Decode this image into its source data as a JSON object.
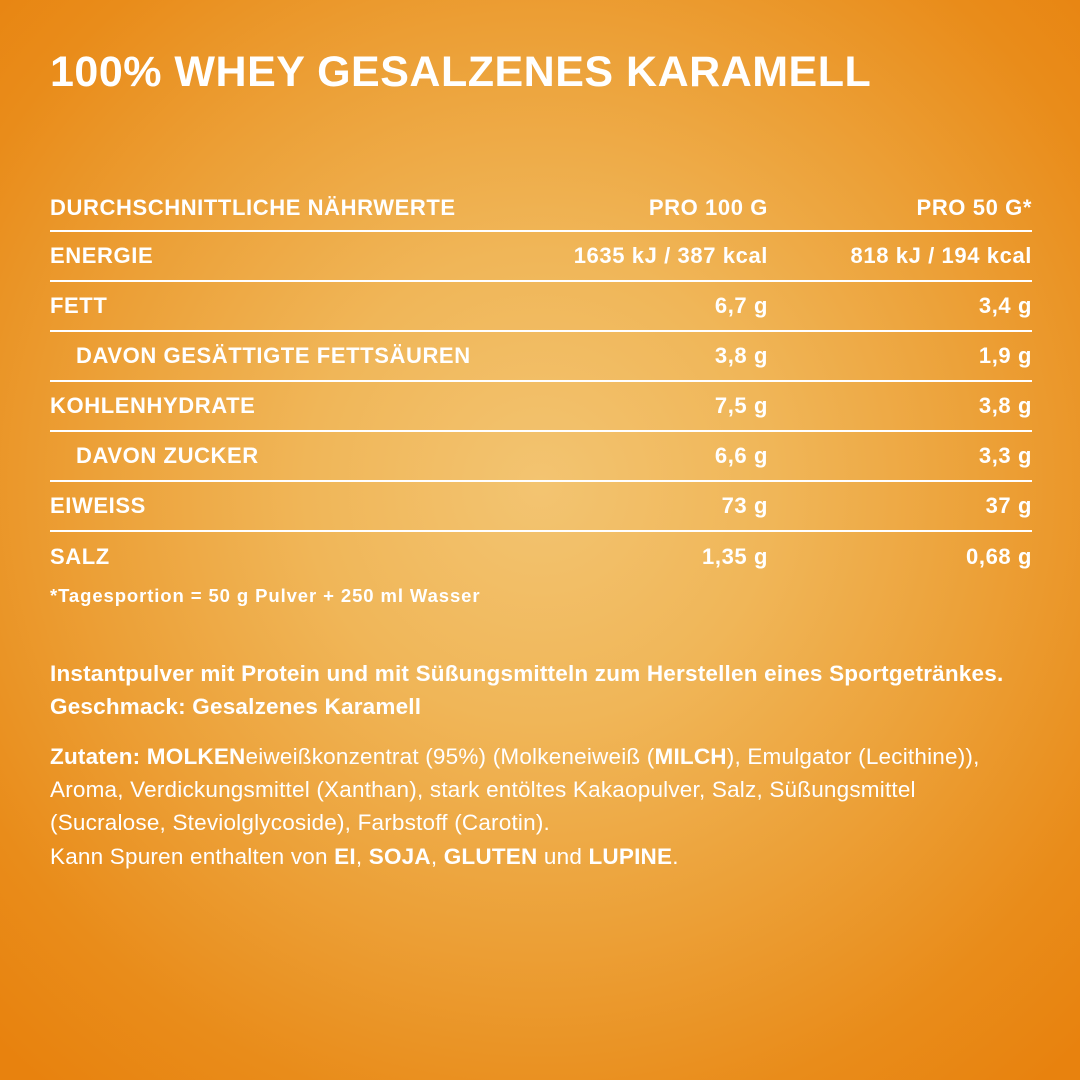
{
  "title": "100% WHEY GESALZENES KARAMELL",
  "colors": {
    "background_edge": "#E8820E",
    "background_center": "#F3C471",
    "text": "#FFFFFF"
  },
  "table": {
    "header": {
      "label": "DURCHSCHNITTLICHE NÄHRWERTE",
      "per100": "PRO 100 G",
      "per50": "PRO 50 G*"
    },
    "rows": [
      {
        "label": "ENERGIE",
        "per100": "1635 kJ / 387 kcal",
        "per50": "818 kJ / 194 kcal"
      },
      {
        "label": "FETT",
        "per100": "6,7 g",
        "per50": "3,4 g"
      },
      {
        "label": "DAVON GESÄTTIGTE FETTSÄUREN",
        "per100": "3,8 g",
        "per50": "1,9 g"
      },
      {
        "label": "KOHLENHYDRATE",
        "per100": "7,5 g",
        "per50": "3,8 g"
      },
      {
        "label": "DAVON ZUCKER",
        "per100": "6,6 g",
        "per50": "3,3 g"
      },
      {
        "label": "EIWEISS",
        "per100": "73 g",
        "per50": "37 g"
      },
      {
        "label": "SALZ",
        "per100": "1,35 g",
        "per50": "0,68 g"
      }
    ],
    "footnote": "*Tagesportion = 50 g Pulver + 250 ml Wasser"
  },
  "description": {
    "text": "Instantpulver mit Protein und mit Süßungsmitteln zum Herstellen eines Sportgetränkes. Geschmack: Gesalzenes Karamell"
  },
  "ingredients": {
    "segments": [
      {
        "t": "Zutaten: "
      },
      {
        "t": "MOLKEN"
      },
      {
        "t": "eiweißkonzentrat (95%) (Molkeneiweiß ("
      },
      {
        "t": "MILCH"
      },
      {
        "t": "), Emulgator (Lecithine)), Aroma, Verdickungsmittel (Xanthan), stark entöltes Kakaopulver, Salz, Süßungsmittel (Sucralose, Steviolglycoside), Farbstoff (Carotin)."
      }
    ]
  },
  "allergens": {
    "segments": [
      {
        "t": "Kann Spuren enthalten von "
      },
      {
        "t": "EI"
      },
      {
        "t": ", "
      },
      {
        "t": "SOJA"
      },
      {
        "t": ", "
      },
      {
        "t": "GLUTEN"
      },
      {
        "t": " und "
      },
      {
        "t": "LUPINE"
      },
      {
        "t": "."
      }
    ]
  }
}
